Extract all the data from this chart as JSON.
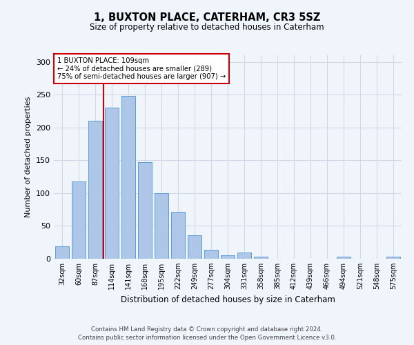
{
  "title": "1, BUXTON PLACE, CATERHAM, CR3 5SZ",
  "subtitle": "Size of property relative to detached houses in Caterham",
  "xlabel": "Distribution of detached houses by size in Caterham",
  "ylabel": "Number of detached properties",
  "categories": [
    "32sqm",
    "60sqm",
    "87sqm",
    "114sqm",
    "141sqm",
    "168sqm",
    "195sqm",
    "222sqm",
    "249sqm",
    "277sqm",
    "304sqm",
    "331sqm",
    "358sqm",
    "385sqm",
    "412sqm",
    "439sqm",
    "466sqm",
    "494sqm",
    "521sqm",
    "548sqm",
    "575sqm"
  ],
  "values": [
    19,
    118,
    210,
    230,
    248,
    147,
    100,
    71,
    36,
    14,
    5,
    9,
    3,
    0,
    0,
    0,
    0,
    3,
    0,
    0,
    3
  ],
  "bar_color": "#aec6e8",
  "bar_edge_color": "#5b9bd5",
  "grid_color": "#d0d8e8",
  "background_color": "#f0f4fb",
  "redline_label": "1 BUXTON PLACE: 109sqm",
  "annotation_line1": "← 24% of detached houses are smaller (289)",
  "annotation_line2": "75% of semi-detached houses are larger (907) →",
  "annotation_box_color": "#ffffff",
  "annotation_box_edge": "#cc0000",
  "redline_color": "#cc0000",
  "redline_x": 2.5,
  "ylim": [
    0,
    310
  ],
  "yticks": [
    0,
    50,
    100,
    150,
    200,
    250,
    300
  ],
  "footer1": "Contains HM Land Registry data © Crown copyright and database right 2024.",
  "footer2": "Contains public sector information licensed under the Open Government Licence v3.0."
}
